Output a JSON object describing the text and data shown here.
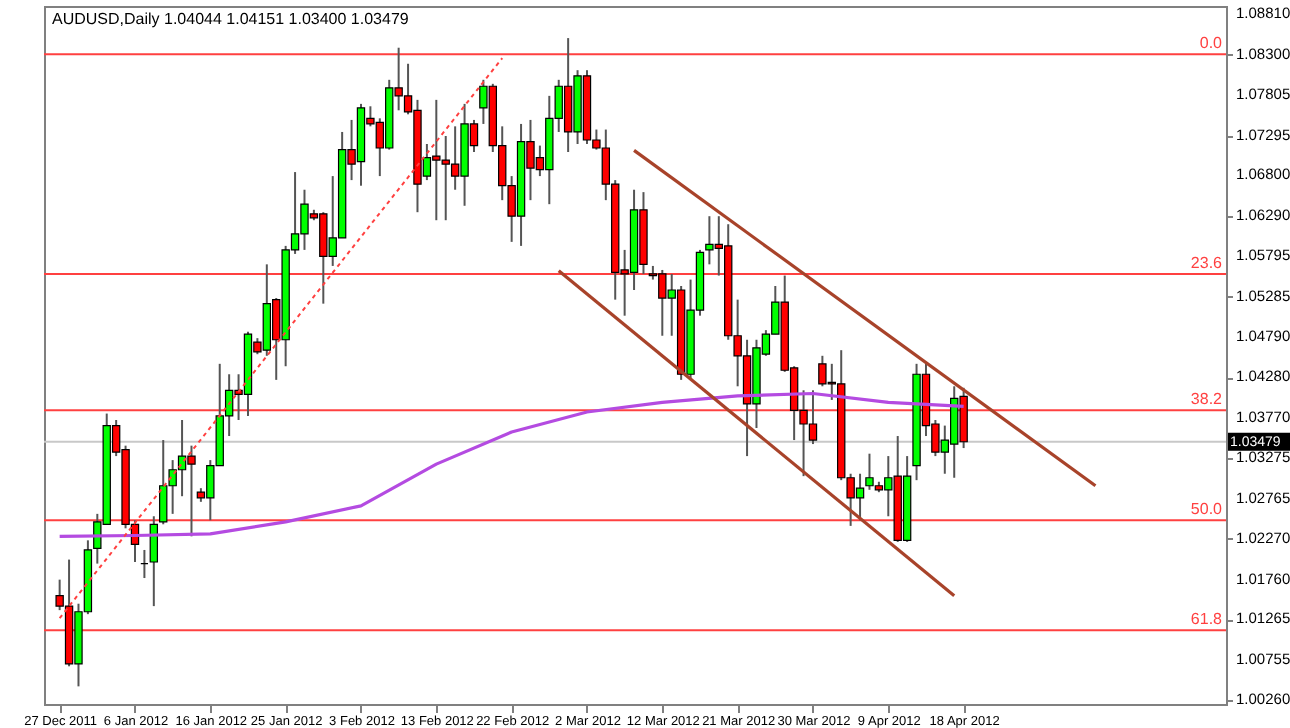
{
  "chart_data": {
    "type": "candlestick",
    "title": "AUDUSD,Daily 1.04044 1.04151 1.03400 1.03479",
    "categories": [
      "27 Dec 2011",
      null,
      null,
      null,
      null,
      null,
      null,
      null,
      "6 Jan 2012",
      null,
      null,
      null,
      null,
      null,
      null,
      null,
      "16 Jan 2012",
      null,
      null,
      null,
      null,
      null,
      null,
      null,
      "25 Jan 2012",
      null,
      null,
      null,
      null,
      null,
      null,
      null,
      "3 Feb 2012",
      null,
      null,
      null,
      null,
      null,
      null,
      null,
      "13 Feb 2012",
      null,
      null,
      null,
      null,
      null,
      null,
      null,
      "22 Feb 2012",
      null,
      null,
      null,
      null,
      null,
      null,
      null,
      "2 Mar 2012",
      null,
      null,
      null,
      null,
      null,
      null,
      null,
      "12 Mar 2012",
      null,
      null,
      null,
      null,
      null,
      null,
      null,
      "21 Mar 2012",
      null,
      null,
      null,
      null,
      null,
      null,
      null,
      "30 Mar 2012",
      null,
      null,
      null,
      null,
      null,
      null,
      null,
      "9 Apr 2012",
      null,
      null,
      null,
      null,
      null,
      null,
      null,
      "18 Apr 2012",
      null,
      null,
      null,
      null,
      null,
      null,
      null,
      null,
      null,
      null,
      null,
      null,
      null,
      null,
      null,
      null,
      null,
      null,
      null,
      null,
      null,
      null,
      null,
      null,
      null,
      null
    ],
    "ohlc": [
      [
        1.0156,
        1.0176,
        1.0138,
        1.0143
      ],
      [
        1.0143,
        1.0201,
        1.0068,
        1.0071
      ],
      [
        1.0071,
        1.0146,
        1.0043,
        1.0136
      ],
      [
        1.0136,
        1.0225,
        1.0133,
        1.0213
      ],
      [
        1.0215,
        1.0258,
        1.0196,
        1.0248
      ],
      [
        1.0245,
        1.0383,
        1.0245,
        1.0368
      ],
      [
        1.0368,
        1.0375,
        1.033,
        1.0335
      ],
      [
        1.0338,
        1.0343,
        1.024,
        1.0245
      ],
      [
        1.0245,
        1.025,
        1.0198,
        1.022
      ],
      [
        1.0196,
        1.0213,
        1.0178,
        1.0196
      ],
      [
        1.0198,
        1.0255,
        1.0143,
        1.0245
      ],
      [
        1.0248,
        1.035,
        1.0245,
        1.0293
      ],
      [
        1.0293,
        1.0325,
        1.0258,
        1.0313
      ],
      [
        1.0313,
        1.0375,
        1.028,
        1.033
      ],
      [
        1.033,
        1.0343,
        1.023,
        1.032
      ],
      [
        1.0285,
        1.029,
        1.0273,
        1.0278
      ],
      [
        1.0278,
        1.0325,
        1.025,
        1.0318
      ],
      [
        1.0318,
        1.0445,
        1.0318,
        1.038
      ],
      [
        1.038,
        1.0432,
        1.0355,
        1.0412
      ],
      [
        1.0412,
        1.0432,
        1.0375,
        1.0407
      ],
      [
        1.0407,
        1.0485,
        1.038,
        1.0482
      ],
      [
        1.0472,
        1.0477,
        1.0457,
        1.046
      ],
      [
        1.0462,
        1.0569,
        1.0455,
        1.052
      ],
      [
        1.0525,
        1.0527,
        1.0425,
        1.0475
      ],
      [
        1.0475,
        1.0592,
        1.0442,
        1.0587
      ],
      [
        1.0587,
        1.0684,
        1.0582,
        1.0607
      ],
      [
        1.0607,
        1.0662,
        1.0587,
        1.0644
      ],
      [
        1.0632,
        1.0637,
        1.0624,
        1.0627
      ],
      [
        1.0632,
        1.0634,
        1.052,
        1.0579
      ],
      [
        1.0579,
        1.0679,
        1.0567,
        1.0602
      ],
      [
        1.0602,
        1.0734,
        1.0602,
        1.0712
      ],
      [
        1.0712,
        1.0749,
        1.0674,
        1.0694
      ],
      [
        1.0697,
        1.0769,
        1.0667,
        1.0764
      ],
      [
        1.0751,
        1.0766,
        1.0741,
        1.0744
      ],
      [
        1.0746,
        1.0751,
        1.0679,
        1.0714
      ],
      [
        1.0714,
        1.0799,
        1.0712,
        1.0789
      ],
      [
        1.0789,
        1.0839,
        1.0761,
        1.0779
      ],
      [
        1.0779,
        1.0819,
        1.0756,
        1.0759
      ],
      [
        1.0761,
        1.0774,
        1.0634,
        1.0669
      ],
      [
        1.0679,
        1.0719,
        1.0674,
        1.0702
      ],
      [
        1.0704,
        1.0774,
        1.0624,
        1.0699
      ],
      [
        1.0699,
        1.0729,
        1.0624,
        1.0694
      ],
      [
        1.0694,
        1.0741,
        1.0662,
        1.0679
      ],
      [
        1.0679,
        1.0769,
        1.0642,
        1.0744
      ],
      [
        1.0744,
        1.0749,
        1.0709,
        1.0717
      ],
      [
        1.0764,
        1.0799,
        1.0744,
        1.0791
      ],
      [
        1.0791,
        1.0794,
        1.0709,
        1.0717
      ],
      [
        1.0717,
        1.0741,
        1.0649,
        1.0667
      ],
      [
        1.0667,
        1.0679,
        1.0597,
        1.0629
      ],
      [
        1.0629,
        1.0744,
        1.0592,
        1.0722
      ],
      [
        1.0722,
        1.0749,
        1.0649,
        1.0689
      ],
      [
        1.0702,
        1.0717,
        1.0679,
        1.0687
      ],
      [
        1.0687,
        1.0779,
        1.0644,
        1.0751
      ],
      [
        1.0751,
        1.0799,
        1.0734,
        1.0791
      ],
      [
        1.0791,
        1.0851,
        1.0709,
        1.0734
      ],
      [
        1.0734,
        1.0811,
        1.0719,
        1.0804
      ],
      [
        1.0804,
        1.0811,
        1.0719,
        1.0724
      ],
      [
        1.0724,
        1.0737,
        1.0712,
        1.0714
      ],
      [
        1.0714,
        1.0737,
        1.0649,
        1.0669
      ],
      [
        1.0669,
        1.0674,
        1.0525,
        1.0559
      ],
      [
        1.0562,
        1.0587,
        1.0505,
        1.0557
      ],
      [
        1.0559,
        1.0662,
        1.0537,
        1.0637
      ],
      [
        1.0637,
        1.0659,
        1.0557,
        1.0569
      ],
      [
        1.0557,
        1.0567,
        1.055,
        1.0555
      ],
      [
        1.0557,
        1.0562,
        1.048,
        1.0527
      ],
      [
        1.0527,
        1.0557,
        1.048,
        1.0537
      ],
      [
        1.0537,
        1.0542,
        1.0425,
        1.0432
      ],
      [
        1.0432,
        1.055,
        1.0425,
        1.0512
      ],
      [
        1.0512,
        1.0587,
        1.0505,
        1.0584
      ],
      [
        1.0587,
        1.0629,
        1.0569,
        1.0594
      ],
      [
        1.0594,
        1.0629,
        1.0555,
        1.0589
      ],
      [
        1.0592,
        1.0619,
        1.0475,
        1.048
      ],
      [
        1.048,
        1.0525,
        1.0417,
        1.0455
      ],
      [
        1.0455,
        1.0475,
        1.033,
        1.0395
      ],
      [
        1.0395,
        1.0475,
        1.0365,
        1.0465
      ],
      [
        1.0457,
        1.0487,
        1.0455,
        1.0482
      ],
      [
        1.0482,
        1.0542,
        1.0482,
        1.0522
      ],
      [
        1.0522,
        1.0555,
        1.0435,
        1.0437
      ],
      [
        1.044,
        1.0442,
        1.035,
        1.0387
      ],
      [
        1.0387,
        1.0412,
        1.0305,
        1.037
      ],
      [
        1.037,
        1.0412,
        1.0345,
        1.035
      ],
      [
        1.0445,
        1.0455,
        1.0417,
        1.042
      ],
      [
        1.0422,
        1.0445,
        1.04,
        1.042
      ],
      [
        1.042,
        1.0462,
        1.03,
        1.0303
      ],
      [
        1.0303,
        1.0308,
        1.0243,
        1.0278
      ],
      [
        1.0278,
        1.0308,
        1.025,
        1.029
      ],
      [
        1.0293,
        1.0333,
        1.0288,
        1.0303
      ],
      [
        1.0293,
        1.0298,
        1.0285,
        1.0288
      ],
      [
        1.0288,
        1.033,
        1.0255,
        1.0303
      ],
      [
        1.0305,
        1.0355,
        1.0223,
        1.0225
      ],
      [
        1.0225,
        1.033,
        1.0223,
        1.0305
      ],
      [
        1.0318,
        1.0445,
        1.03,
        1.0432
      ],
      [
        1.0432,
        1.0445,
        1.0355,
        1.0368
      ],
      [
        1.037,
        1.0375,
        1.033,
        1.0335
      ],
      [
        1.0335,
        1.0368,
        1.0308,
        1.035
      ],
      [
        1.0345,
        1.0417,
        1.0303,
        1.0402
      ],
      [
        1.04044,
        1.04151,
        1.034,
        1.03479
      ],
      null,
      null,
      null,
      null,
      null,
      null,
      null,
      null,
      null,
      null,
      null,
      null,
      null,
      null,
      null,
      null,
      null,
      null,
      null,
      null,
      null,
      null,
      null,
      null,
      null,
      null
    ],
    "colors": [
      "#ff0000",
      "#ff0000",
      "#00ff00",
      "#00ff00",
      "#00ff00",
      "#00ff00",
      "#ff0000",
      "#ff0000",
      "#ff0000",
      "#000000",
      "#00ff00",
      "#00ff00",
      "#00ff00",
      "#00ff00",
      "#ff0000",
      "#ff0000",
      "#00ff00",
      "#00ff00",
      "#00ff00",
      "#ff0000",
      "#00ff00",
      "#ff0000",
      "#00ff00",
      "#ff0000",
      "#00ff00",
      "#00ff00",
      "#00ff00",
      "#ff0000",
      "#ff0000",
      "#00ff00",
      "#00ff00",
      "#ff0000",
      "#00ff00",
      "#ff0000",
      "#ff0000",
      "#00ff00",
      "#ff0000",
      "#ff0000",
      "#ff0000",
      "#00ff00",
      "#ff0000",
      "#ff0000",
      "#ff0000",
      "#00ff00",
      "#ff0000",
      "#00ff00",
      "#ff0000",
      "#ff0000",
      "#ff0000",
      "#00ff00",
      "#ff0000",
      "#ff0000",
      "#00ff00",
      "#00ff00",
      "#ff0000",
      "#00ff00",
      "#ff0000",
      "#ff0000",
      "#ff0000",
      "#ff0000",
      "#ff0000",
      "#00ff00",
      "#ff0000",
      "#ff0000",
      "#ff0000",
      "#00ff00",
      "#ff0000",
      "#00ff00",
      "#00ff00",
      "#00ff00",
      "#ff0000",
      "#ff0000",
      "#ff0000",
      "#ff0000",
      "#00ff00",
      "#00ff00",
      "#00ff00",
      "#ff0000",
      "#ff0000",
      "#ff0000",
      "#ff0000",
      "#ff0000",
      "#ff0000",
      "#ff0000",
      "#ff0000",
      "#00ff00",
      "#00ff00",
      "#ff0000",
      "#00ff00",
      "#ff0000",
      "#00ff00",
      "#00ff00",
      "#ff0000",
      "#ff0000",
      "#00ff00",
      "#00ff00",
      "#ff0000",
      null,
      null,
      null,
      null,
      null,
      null,
      null,
      null,
      null,
      null,
      null,
      null,
      null,
      null,
      null,
      null,
      null,
      null,
      null,
      null,
      null,
      null,
      null,
      null,
      null,
      null
    ],
    "series": [
      {
        "type": "line",
        "color": "#b44be1",
        "line_style": "solid",
        "values": [
          1.023,
          null,
          null,
          null,
          null,
          null,
          null,
          null,
          1.0231,
          null,
          null,
          null,
          null,
          null,
          null,
          null,
          1.0233,
          null,
          null,
          null,
          null,
          null,
          null,
          null,
          1.0248,
          null,
          null,
          null,
          null,
          null,
          null,
          null,
          1.0268,
          null,
          null,
          null,
          null,
          null,
          null,
          null,
          1.032,
          null,
          null,
          null,
          null,
          null,
          null,
          null,
          1.036,
          null,
          null,
          null,
          null,
          null,
          null,
          null,
          1.0385,
          null,
          null,
          null,
          null,
          null,
          null,
          null,
          1.0397,
          null,
          null,
          null,
          null,
          null,
          null,
          null,
          1.0405,
          null,
          null,
          null,
          null,
          null,
          null,
          null,
          1.0408,
          null,
          null,
          null,
          null,
          null,
          null,
          null,
          1.0397,
          null,
          null,
          null,
          null,
          null,
          null,
          null,
          1.0392,
          null,
          null,
          null,
          null,
          null,
          null,
          null,
          null,
          null,
          null,
          null,
          null,
          null,
          null,
          null,
          null,
          null,
          null,
          null,
          null,
          null,
          null,
          null,
          null,
          null,
          null
        ]
      },
      {
        "type": "line",
        "color": "#ff4040",
        "line_style": "dotted",
        "values": [
          1.0128,
          null,
          null,
          null,
          null,
          null,
          null,
          null,
          null,
          null,
          null,
          null,
          null,
          null,
          null,
          null,
          null,
          null,
          null,
          null,
          null,
          null,
          null,
          null,
          null,
          null,
          null,
          null,
          null,
          null,
          null,
          null,
          null,
          null,
          null,
          null,
          null,
          null,
          null,
          null,
          null,
          null,
          null,
          null,
          null,
          null,
          null,
          1.0826,
          null,
          null,
          null,
          null,
          null,
          null,
          null,
          null,
          null,
          null,
          null,
          null,
          null,
          null,
          null,
          null,
          null,
          null,
          null,
          null,
          null,
          null,
          null,
          null,
          null,
          null,
          null,
          null,
          null,
          null,
          null,
          null,
          null,
          null,
          null,
          null,
          null,
          null,
          null,
          null,
          null,
          null,
          null,
          null,
          null,
          null,
          null,
          null,
          null,
          null,
          null,
          null,
          null,
          null,
          null,
          null,
          null,
          null,
          null,
          null,
          null,
          null,
          null,
          null,
          null,
          null,
          null,
          null,
          null,
          null,
          null,
          null,
          null,
          null,
          null
        ]
      },
      {
        "type": "line",
        "color": "#a8432a",
        "line_style": "solid",
        "values": [
          null,
          null,
          null,
          null,
          null,
          null,
          null,
          null,
          null,
          null,
          null,
          null,
          null,
          null,
          null,
          null,
          null,
          null,
          null,
          null,
          null,
          null,
          null,
          null,
          null,
          null,
          null,
          null,
          null,
          null,
          null,
          null,
          null,
          null,
          null,
          null,
          null,
          null,
          null,
          null,
          null,
          null,
          null,
          null,
          null,
          null,
          null,
          null,
          null,
          null,
          null,
          null,
          null,
          null,
          null,
          null,
          null,
          null,
          null,
          null,
          null,
          1.0711,
          null,
          null,
          null,
          null,
          null,
          null,
          null,
          null,
          null,
          null,
          null,
          null,
          null,
          null,
          null,
          null,
          null,
          null,
          null,
          null,
          null,
          null,
          null,
          null,
          null,
          null,
          null,
          null,
          null,
          null,
          null,
          null,
          null,
          null,
          null,
          null,
          null,
          null,
          null,
          null,
          null,
          null,
          null,
          null,
          null,
          null,
          null,
          null,
          1.0293,
          null,
          null,
          null,
          null,
          null,
          null,
          null,
          null,
          null,
          null,
          null,
          null
        ]
      },
      {
        "type": "line",
        "color": "#a8432a",
        "line_style": "solid",
        "values": [
          null,
          null,
          null,
          null,
          null,
          null,
          null,
          null,
          null,
          null,
          null,
          null,
          null,
          null,
          null,
          null,
          null,
          null,
          null,
          null,
          null,
          null,
          null,
          null,
          null,
          null,
          null,
          null,
          null,
          null,
          null,
          null,
          null,
          null,
          null,
          null,
          null,
          null,
          null,
          null,
          null,
          null,
          null,
          null,
          null,
          null,
          null,
          null,
          null,
          null,
          null,
          null,
          null,
          1.0561,
          null,
          null,
          null,
          null,
          null,
          null,
          null,
          null,
          null,
          null,
          null,
          null,
          null,
          null,
          null,
          null,
          null,
          null,
          null,
          null,
          null,
          null,
          null,
          null,
          null,
          null,
          null,
          null,
          null,
          null,
          null,
          null,
          null,
          null,
          null,
          null,
          null,
          null,
          null,
          null,
          null,
          1.0156,
          null,
          null,
          null,
          null,
          null,
          null,
          null,
          null,
          null,
          null,
          null,
          null,
          null,
          null,
          null,
          null,
          null,
          null,
          null,
          null,
          null,
          null,
          null,
          null,
          null,
          null,
          null
        ]
      }
    ],
    "ylim": [
      1.0021,
      1.0891
    ],
    "yticks": [
      {
        "value": 1.0026,
        "label": "1.00260"
      },
      {
        "value": 1.00755,
        "label": "1.00755"
      },
      {
        "value": 1.01265,
        "label": "1.01265"
      },
      {
        "value": 1.0176,
        "label": "1.01760"
      },
      {
        "value": 1.0227,
        "label": "1.02270"
      },
      {
        "value": 1.02765,
        "label": "1.02765"
      },
      {
        "value": 1.03275,
        "label": "1.03275"
      },
      {
        "value": 1.0377,
        "label": "1.03770"
      },
      {
        "value": 1.0428,
        "label": "1.04280"
      },
      {
        "value": 1.0479,
        "label": "1.04790"
      },
      {
        "value": 1.05285,
        "label": "1.05285"
      },
      {
        "value": 1.05795,
        "label": "1.05795"
      },
      {
        "value": 1.0629,
        "label": "1.06290"
      },
      {
        "value": 1.068,
        "label": "1.06800"
      },
      {
        "value": 1.07295,
        "label": "1.07295"
      },
      {
        "value": 1.07805,
        "label": "1.07805"
      },
      {
        "value": 1.083,
        "label": "1.08300"
      },
      {
        "value": 1.0881,
        "label": "1.08810"
      }
    ],
    "ref_lines": [
      {
        "axis": "y",
        "value": 1.0831,
        "color": "#ff4040"
      },
      {
        "axis": "y",
        "value": 1.0557,
        "color": "#ff4040"
      },
      {
        "axis": "y",
        "value": 1.0387,
        "color": "#ff4040"
      },
      {
        "axis": "y",
        "value": 1.025,
        "color": "#ff4040"
      },
      {
        "axis": "y",
        "value": 1.0113,
        "color": "#ff4040"
      },
      {
        "axis": "y",
        "value": 1.03479,
        "label": "1.03479",
        "color": "#c8c8c8"
      }
    ],
    "annotations": [
      {
        "text": "0.0",
        "y": 1.0831
      },
      {
        "text": "23.6",
        "y": 1.0557
      },
      {
        "text": "38.2",
        "y": 1.0387
      },
      {
        "text": "50.0",
        "y": 1.025
      },
      {
        "text": "61.8",
        "y": 1.0113
      }
    ],
    "grid": false
  }
}
